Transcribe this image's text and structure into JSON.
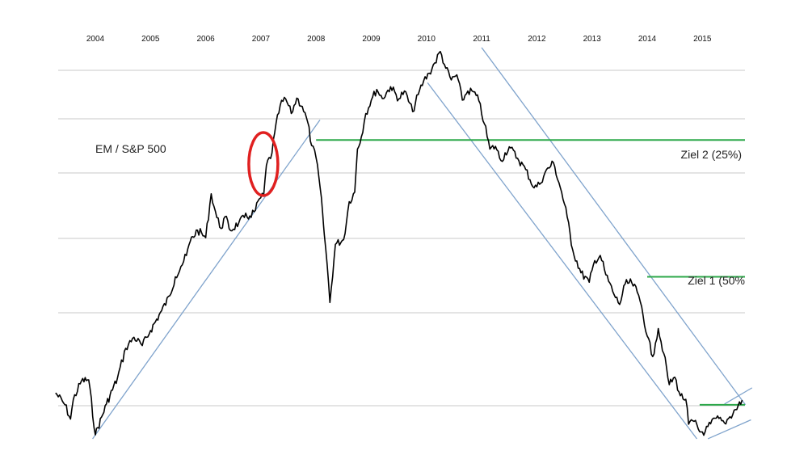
{
  "chart_data": {
    "type": "line",
    "title": "",
    "xlabel": "",
    "ylabel": "",
    "x_axis_position": "top",
    "x_ticks": [
      "2004",
      "2005",
      "2006",
      "2007",
      "2008",
      "2009",
      "2010",
      "2011",
      "2012",
      "2013",
      "2014",
      "2015"
    ],
    "xlim": [
      2003.25,
      2016.0
    ],
    "y_tick_labels_shown": false,
    "grid": "horizontal",
    "series": [
      {
        "name": "",
        "color": "#000000",
        "x": [
          2003.28,
          2003.45,
          2003.55,
          2003.6,
          2003.75,
          2003.88,
          2004.0,
          2004.2,
          2004.4,
          2004.55,
          2004.7,
          2004.85,
          2005.0,
          2005.2,
          2005.35,
          2005.45,
          2005.55,
          2005.65,
          2005.72,
          2005.85,
          2006.0,
          2006.1,
          2006.2,
          2006.28,
          2006.35,
          2006.45,
          2006.6,
          2006.7,
          2006.8,
          2006.9,
          2006.97,
          2007.05,
          2007.1,
          2007.2,
          2007.25,
          2007.35,
          2007.45,
          2007.55,
          2007.65,
          2007.75,
          2007.85,
          2007.92,
          2008.0,
          2008.05,
          2008.12,
          2008.15,
          2008.2,
          2008.25,
          2008.35,
          2008.5,
          2008.6,
          2008.7,
          2008.75,
          2008.82,
          2008.9,
          2009.0,
          2009.1,
          2009.2,
          2009.35,
          2009.5,
          2009.6,
          2009.75,
          2009.85,
          2009.95,
          2010.05,
          2010.15,
          2010.25,
          2010.35,
          2010.45,
          2010.55,
          2010.65,
          2010.75,
          2010.85,
          2010.95,
          2011.05,
          2011.15,
          2011.25,
          2011.35,
          2011.5,
          2011.65,
          2011.8,
          2011.95,
          2012.05,
          2012.15,
          2012.3,
          2012.45,
          2012.55,
          2012.65,
          2012.8,
          2012.95,
          2013.05,
          2013.15,
          2013.25,
          2013.4,
          2013.5,
          2013.6,
          2013.72,
          2013.82,
          2013.9,
          2014.0,
          2014.1,
          2014.15,
          2014.2,
          2014.3,
          2014.4,
          2014.5,
          2014.6,
          2014.7,
          2014.75,
          2014.85,
          2014.95,
          2015.05,
          2015.15,
          2015.25,
          2015.4,
          2015.5,
          2015.6,
          2015.72
        ],
        "y": [
          0.112,
          0.082,
          0.046,
          0.095,
          0.143,
          0.145,
          0.006,
          0.084,
          0.149,
          0.225,
          0.253,
          0.232,
          0.27,
          0.32,
          0.358,
          0.406,
          0.432,
          0.46,
          0.496,
          0.524,
          0.505,
          0.616,
          0.556,
          0.528,
          0.558,
          0.523,
          0.543,
          0.556,
          0.56,
          0.574,
          0.603,
          0.611,
          0.688,
          0.719,
          0.771,
          0.84,
          0.856,
          0.819,
          0.858,
          0.837,
          0.796,
          0.738,
          0.707,
          0.659,
          0.565,
          0.512,
          0.437,
          0.341,
          0.488,
          0.5,
          0.596,
          0.62,
          0.729,
          0.76,
          0.819,
          0.853,
          0.88,
          0.857,
          0.887,
          0.856,
          0.876,
          0.824,
          0.867,
          0.902,
          0.921,
          0.947,
          0.976,
          0.934,
          0.904,
          0.917,
          0.853,
          0.876,
          0.874,
          0.851,
          0.793,
          0.729,
          0.736,
          0.7,
          0.735,
          0.706,
          0.677,
          0.631,
          0.64,
          0.67,
          0.695,
          0.62,
          0.557,
          0.474,
          0.416,
          0.392,
          0.447,
          0.46,
          0.411,
          0.361,
          0.336,
          0.388,
          0.391,
          0.367,
          0.33,
          0.256,
          0.204,
          0.238,
          0.275,
          0.212,
          0.133,
          0.152,
          0.105,
          0.096,
          0.033,
          0.04,
          0.014,
          0.014,
          0.034,
          0.048,
          0.036,
          0.052,
          0.07,
          0.094
        ]
      }
    ],
    "reference_lines": [
      {
        "label": "Ziel 2 (25%)",
        "y": 0.752,
        "x_from": 2008.0,
        "color": "#2da84a"
      },
      {
        "label": "Ziel 1 (50%",
        "y": 0.406,
        "x_from": 2014.0,
        "color": "#2da84a"
      },
      {
        "label": "",
        "y": 0.082,
        "x_from": 2014.95,
        "color": "#2da84a"
      }
    ],
    "trend_lines": [
      {
        "color": "#7fa3cc",
        "points": [
          [
            2003.95,
            -0.004
          ],
          [
            2008.07,
            0.803
          ]
        ]
      },
      {
        "color": "#7fa3cc",
        "points": [
          [
            2010.02,
            0.897
          ],
          [
            2014.9,
            -0.004
          ]
        ]
      },
      {
        "color": "#7fa3cc",
        "points": [
          [
            2011.0,
            0.986
          ],
          [
            2015.78,
            0.082
          ]
        ]
      },
      {
        "color": "#7fa3cc",
        "points": [
          [
            2015.1,
            -0.004
          ],
          [
            2015.88,
            0.044
          ]
        ]
      },
      {
        "color": "#7fa3cc",
        "points": [
          [
            2015.4,
            0.084
          ],
          [
            2015.9,
            0.125
          ]
        ]
      }
    ],
    "annotations": [
      {
        "text": "EM / S&P 500"
      },
      {
        "text": "Ziel 2 (25%)"
      },
      {
        "text": "Ziel 1 (50%"
      }
    ],
    "highlight": {
      "shape": "ellipse",
      "color": "#e02020",
      "x": 2007.0,
      "y": 0.69
    }
  }
}
